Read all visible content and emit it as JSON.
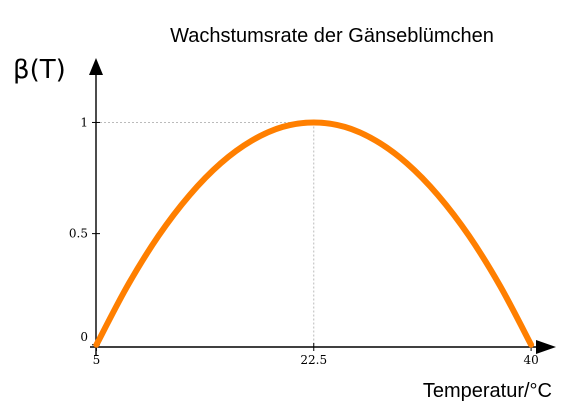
{
  "chart_data": {
    "type": "line",
    "title": "Wachstumsrate der Gänseblümchen",
    "ylabel": "β(T)",
    "xlabel": "Temperatur/°C",
    "xlim": [
      4,
      41.2
    ],
    "ylim": [
      -0.01,
      1.2
    ],
    "x_ticks": [
      {
        "value": 5,
        "label": "5"
      },
      {
        "value": 22.5,
        "label": "22.5"
      },
      {
        "value": 40,
        "label": "40"
      }
    ],
    "y_ticks": [
      {
        "value": 0,
        "label": "0"
      },
      {
        "value": 0.5,
        "label": "0.5"
      },
      {
        "value": 1,
        "label": "1"
      }
    ],
    "series": [
      {
        "color": "#ff7f00",
        "x": [
          5,
          7.5,
          10,
          12.5,
          15,
          17.5,
          20,
          22.5,
          25,
          27.5,
          30,
          32.5,
          35,
          37.5,
          40
        ],
        "y": [
          0,
          0.265,
          0.49,
          0.673,
          0.816,
          0.918,
          0.98,
          1,
          0.98,
          0.918,
          0.816,
          0.673,
          0.49,
          0.265,
          0
        ]
      }
    ],
    "peak": {
      "x": 22.5,
      "y": 1
    },
    "grid": false
  }
}
